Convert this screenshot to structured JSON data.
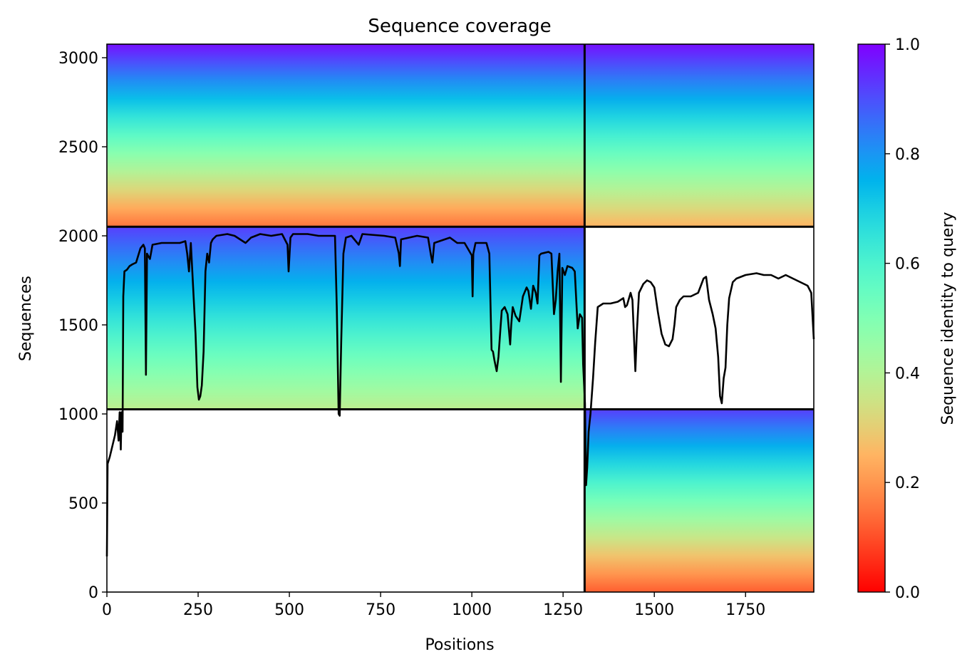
{
  "chart_data": {
    "type": "heatmap",
    "title": "Sequence coverage",
    "xlabel": "Positions",
    "ylabel": "Sequences",
    "colorbar_label": "Sequence identity to query",
    "colormap": "rainbow_r",
    "xlim": [
      0,
      1937
    ],
    "ylim": [
      0,
      3076
    ],
    "clim": [
      0,
      1
    ],
    "xticks": [
      0,
      250,
      500,
      750,
      1000,
      1250,
      1500,
      1750
    ],
    "yticks": [
      0,
      500,
      1000,
      1500,
      2000,
      2500,
      3000
    ],
    "colorbar_ticks": [
      "0.0",
      "0.2",
      "0.4",
      "0.6",
      "0.8",
      "1.0"
    ],
    "chain_boundaries": {
      "x": [
        1309
      ],
      "y": [
        1026,
        2051
      ]
    },
    "blocks": [
      {
        "x0": 0,
        "x1": 1309,
        "y0": 2051,
        "y1": 3076,
        "identity_bottom": 0.15,
        "identity_top": 0.98
      },
      {
        "x0": 1309,
        "x1": 1937,
        "y0": 2051,
        "y1": 3076,
        "identity_bottom": 0.25,
        "identity_top": 0.98
      },
      {
        "x0": 0,
        "x1": 1309,
        "y0": 1026,
        "y1": 2051,
        "identity_bottom": 0.38,
        "identity_top": 0.92
      },
      {
        "x0": 1309,
        "x1": 1937,
        "y0": 0,
        "y1": 1026,
        "identity_bottom": 0.12,
        "identity_top": 0.92
      }
    ],
    "coverage_line": {
      "color": "#000000",
      "points": [
        [
          0,
          200
        ],
        [
          2,
          720
        ],
        [
          8,
          760
        ],
        [
          15,
          820
        ],
        [
          22,
          880
        ],
        [
          28,
          960
        ],
        [
          32,
          850
        ],
        [
          35,
          1010
        ],
        [
          38,
          800
        ],
        [
          40,
          1010
        ],
        [
          43,
          900
        ],
        [
          45,
          1660
        ],
        [
          48,
          1800
        ],
        [
          55,
          1810
        ],
        [
          62,
          1830
        ],
        [
          70,
          1840
        ],
        [
          80,
          1850
        ],
        [
          92,
          1930
        ],
        [
          100,
          1950
        ],
        [
          104,
          1930
        ],
        [
          107,
          1220
        ],
        [
          110,
          1900
        ],
        [
          118,
          1870
        ],
        [
          125,
          1950
        ],
        [
          150,
          1960
        ],
        [
          200,
          1960
        ],
        [
          215,
          1970
        ],
        [
          220,
          1900
        ],
        [
          225,
          1800
        ],
        [
          230,
          1960
        ],
        [
          243,
          1450
        ],
        [
          248,
          1150
        ],
        [
          252,
          1080
        ],
        [
          256,
          1100
        ],
        [
          260,
          1160
        ],
        [
          265,
          1350
        ],
        [
          270,
          1800
        ],
        [
          275,
          1900
        ],
        [
          280,
          1850
        ],
        [
          285,
          1960
        ],
        [
          290,
          1980
        ],
        [
          300,
          2000
        ],
        [
          330,
          2010
        ],
        [
          350,
          2000
        ],
        [
          380,
          1960
        ],
        [
          395,
          1990
        ],
        [
          420,
          2010
        ],
        [
          450,
          2000
        ],
        [
          480,
          2010
        ],
        [
          495,
          1950
        ],
        [
          498,
          1800
        ],
        [
          503,
          1990
        ],
        [
          510,
          2010
        ],
        [
          550,
          2010
        ],
        [
          580,
          2000
        ],
        [
          600,
          2000
        ],
        [
          625,
          2000
        ],
        [
          630,
          1600
        ],
        [
          635,
          1000
        ],
        [
          638,
          990
        ],
        [
          642,
          1400
        ],
        [
          648,
          1900
        ],
        [
          655,
          1990
        ],
        [
          670,
          2000
        ],
        [
          690,
          1950
        ],
        [
          700,
          2010
        ],
        [
          760,
          2000
        ],
        [
          790,
          1990
        ],
        [
          800,
          1900
        ],
        [
          803,
          1830
        ],
        [
          806,
          1980
        ],
        [
          850,
          2000
        ],
        [
          880,
          1990
        ],
        [
          888,
          1890
        ],
        [
          892,
          1850
        ],
        [
          897,
          1960
        ],
        [
          940,
          1990
        ],
        [
          960,
          1960
        ],
        [
          980,
          1960
        ],
        [
          1000,
          1890
        ],
        [
          1002,
          1660
        ],
        [
          1004,
          1900
        ],
        [
          1010,
          1960
        ],
        [
          1040,
          1960
        ],
        [
          1048,
          1900
        ],
        [
          1054,
          1360
        ],
        [
          1058,
          1350
        ],
        [
          1062,
          1300
        ],
        [
          1068,
          1240
        ],
        [
          1073,
          1320
        ],
        [
          1078,
          1470
        ],
        [
          1082,
          1580
        ],
        [
          1090,
          1600
        ],
        [
          1098,
          1560
        ],
        [
          1105,
          1390
        ],
        [
          1108,
          1500
        ],
        [
          1112,
          1600
        ],
        [
          1120,
          1550
        ],
        [
          1130,
          1520
        ],
        [
          1140,
          1660
        ],
        [
          1150,
          1710
        ],
        [
          1155,
          1690
        ],
        [
          1162,
          1590
        ],
        [
          1168,
          1720
        ],
        [
          1175,
          1680
        ],
        [
          1180,
          1620
        ],
        [
          1185,
          1890
        ],
        [
          1190,
          1900
        ],
        [
          1210,
          1910
        ],
        [
          1218,
          1900
        ],
        [
          1225,
          1560
        ],
        [
          1230,
          1640
        ],
        [
          1235,
          1800
        ],
        [
          1240,
          1900
        ],
        [
          1244,
          1180
        ],
        [
          1248,
          1820
        ],
        [
          1255,
          1780
        ],
        [
          1262,
          1830
        ],
        [
          1275,
          1820
        ],
        [
          1282,
          1800
        ],
        [
          1290,
          1480
        ],
        [
          1296,
          1560
        ],
        [
          1302,
          1540
        ],
        [
          1305,
          1280
        ],
        [
          1310,
          1060
        ],
        [
          1313,
          600
        ],
        [
          1316,
          700
        ],
        [
          1320,
          900
        ],
        [
          1325,
          1000
        ],
        [
          1332,
          1200
        ],
        [
          1338,
          1400
        ],
        [
          1345,
          1600
        ],
        [
          1360,
          1620
        ],
        [
          1380,
          1620
        ],
        [
          1400,
          1630
        ],
        [
          1415,
          1650
        ],
        [
          1420,
          1600
        ],
        [
          1425,
          1610
        ],
        [
          1435,
          1680
        ],
        [
          1440,
          1640
        ],
        [
          1445,
          1400
        ],
        [
          1448,
          1240
        ],
        [
          1452,
          1450
        ],
        [
          1458,
          1680
        ],
        [
          1470,
          1730
        ],
        [
          1480,
          1750
        ],
        [
          1490,
          1740
        ],
        [
          1500,
          1710
        ],
        [
          1510,
          1570
        ],
        [
          1520,
          1450
        ],
        [
          1530,
          1390
        ],
        [
          1540,
          1380
        ],
        [
          1550,
          1420
        ],
        [
          1555,
          1500
        ],
        [
          1560,
          1600
        ],
        [
          1570,
          1640
        ],
        [
          1580,
          1660
        ],
        [
          1600,
          1660
        ],
        [
          1620,
          1680
        ],
        [
          1635,
          1760
        ],
        [
          1642,
          1770
        ],
        [
          1650,
          1640
        ],
        [
          1660,
          1560
        ],
        [
          1668,
          1480
        ],
        [
          1675,
          1320
        ],
        [
          1680,
          1100
        ],
        [
          1685,
          1060
        ],
        [
          1690,
          1200
        ],
        [
          1695,
          1260
        ],
        [
          1700,
          1500
        ],
        [
          1705,
          1650
        ],
        [
          1715,
          1740
        ],
        [
          1725,
          1760
        ],
        [
          1750,
          1780
        ],
        [
          1780,
          1790
        ],
        [
          1800,
          1780
        ],
        [
          1820,
          1780
        ],
        [
          1840,
          1760
        ],
        [
          1860,
          1780
        ],
        [
          1880,
          1760
        ],
        [
          1900,
          1740
        ],
        [
          1920,
          1720
        ],
        [
          1930,
          1680
        ],
        [
          1937,
          1420
        ]
      ]
    }
  }
}
